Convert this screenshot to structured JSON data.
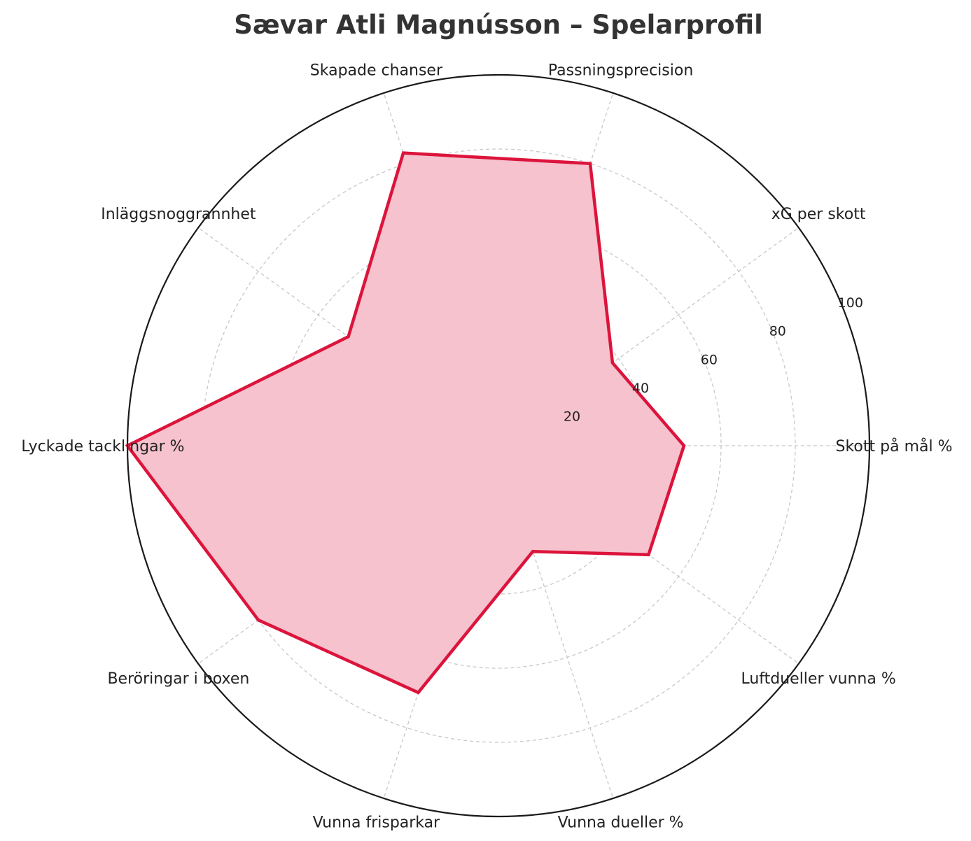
{
  "chart_data": {
    "type": "radar",
    "title": "Sævar Atli Magnússon – Spelarprofil",
    "axes": [
      "Skott på mål %",
      "xG per skott",
      "Passningsprecision",
      "Skapade chanser",
      "Inläggsnoggrannhet",
      "Lyckade tacklingar %",
      "Beröringar i boxen",
      "Vunna frisparkar",
      "Vunna dueller %",
      "Luftdueller vunna %"
    ],
    "values": [
      50,
      38,
      80,
      83,
      50,
      100,
      80,
      70,
      30,
      50
    ],
    "rlim": [
      0,
      100
    ],
    "ticks": [
      20,
      40,
      60,
      80,
      100
    ],
    "grid": true,
    "colors": {
      "line": "#dc143c",
      "fill": "#f5c2ce",
      "grid": "#c8c8c8",
      "frame": "#1a1a1a"
    }
  }
}
